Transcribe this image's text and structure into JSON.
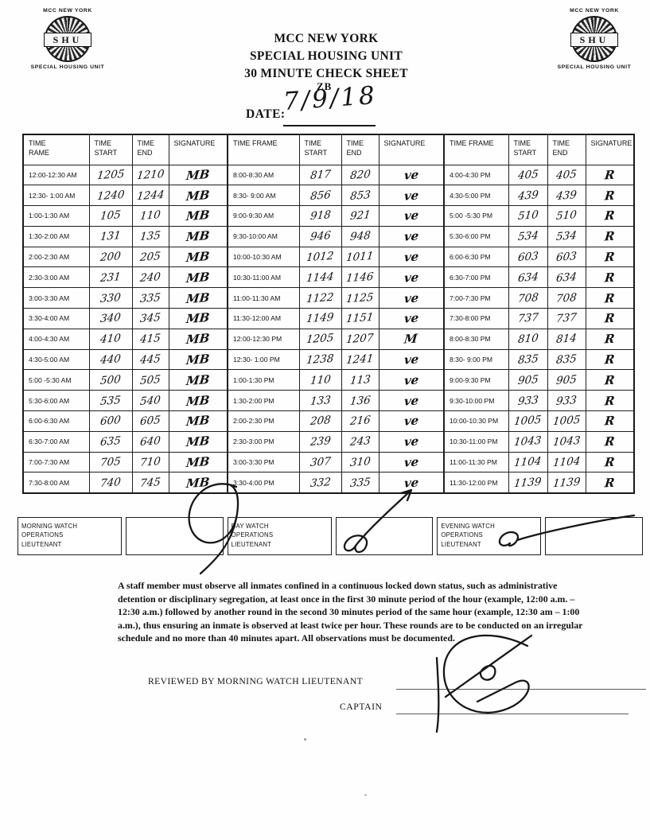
{
  "header": {
    "logo": {
      "top_line": "MCC NEW YORK",
      "seal_text": "SHU",
      "bottom_line": "SPECIAL HOUSING UNIT"
    },
    "title_line1": "MCC NEW YORK",
    "title_line2": "SPECIAL HOUSING UNIT",
    "title_line3": "30 MINUTE CHECK SHEET",
    "stamp": "ZB",
    "date_label": "DATE:",
    "date_value": "7/9/18"
  },
  "table": {
    "headers": [
      "TIME\nRAME",
      "TIME\nSTART",
      "TIME\nEND",
      "SIGNATURE",
      "TIME FRAME",
      "TIME\nSTART",
      "TIME\nEND",
      "SIGNATURE",
      "TIME FRAME",
      "TIME\nSTART",
      "TIME\nEND",
      "SIGNATURE"
    ],
    "rows": [
      [
        "12:00-12:30 AM",
        "1205",
        "1210",
        "MB",
        "8:00-8:30 AM",
        "817",
        "820",
        "ve",
        "4:00-4:30 PM",
        "405",
        "405",
        "R"
      ],
      [
        "12:30- 1:00 AM",
        "1240",
        "1244",
        "MB",
        "8:30- 9:00 AM",
        "856",
        "853",
        "ve",
        "4:30-5:00 PM",
        "439",
        "439",
        "R"
      ],
      [
        "1:00-1:30 AM",
        "105",
        "110",
        "MB",
        "9:00-9:30 AM",
        "918",
        "921",
        "ve",
        "5:00 -5:30 PM",
        "510",
        "510",
        "R"
      ],
      [
        "1:30-2:00 AM",
        "131",
        "135",
        "MB",
        "9:30-10:00 AM",
        "946",
        "948",
        "ve",
        "5:30-6:00 PM",
        "534",
        "534",
        "R"
      ],
      [
        "2:00-2:30 AM",
        "200",
        "205",
        "MB",
        "10:00-10:30 AM",
        "1012",
        "1011",
        "ve",
        "6:00-6:30 PM",
        "603",
        "603",
        "R"
      ],
      [
        "2:30-3:00 AM",
        "231",
        "240",
        "MB",
        "10:30-11:00 AM",
        "1144",
        "1146",
        "ve",
        "6:30-7:00 PM",
        "634",
        "634",
        "R"
      ],
      [
        "3:00-3:30 AM",
        "330",
        "335",
        "MB",
        "11:00-11:30 AM",
        "1122",
        "1125",
        "ve",
        "7:00-7:30 PM",
        "708",
        "708",
        "R"
      ],
      [
        "3:30-4:00 AM",
        "340",
        "345",
        "MB",
        "11:30-12:00 AM",
        "1149",
        "1151",
        "ve",
        "7:30-8:00 PM",
        "737",
        "737",
        "R"
      ],
      [
        "4:00-4:30 AM",
        "410",
        "415",
        "MB",
        "12:00-12:30 PM",
        "1205",
        "1207",
        "M",
        "8:00-8:30 PM",
        "810",
        "814",
        "R"
      ],
      [
        "4:30-5:00 AM",
        "440",
        "445",
        "MB",
        "12:30- 1:00 PM",
        "1238",
        "1241",
        "ve",
        "8:30- 9:00 PM",
        "835",
        "835",
        "R"
      ],
      [
        "5:00 -5:30 AM",
        "500",
        "505",
        "MB",
        "1:00-1:30 PM",
        "110",
        "113",
        "ve",
        "9:00-9:30 PM",
        "905",
        "905",
        "R"
      ],
      [
        "5:30-6:00 AM",
        "535",
        "540",
        "MB",
        "1:30-2:00 PM",
        "133",
        "136",
        "ve",
        "9:30-10:00 PM",
        "933",
        "933",
        "R"
      ],
      [
        "6:00-6:30 AM",
        "600",
        "605",
        "MB",
        "2:00-2:30 PM",
        "208",
        "216",
        "ve",
        "10:00-10:30 PM",
        "1005",
        "1005",
        "R"
      ],
      [
        "6:30-7:00 AM",
        "635",
        "640",
        "MB",
        "2:30-3:00 PM",
        "239",
        "243",
        "ve",
        "10:30-11:00 PM",
        "1043",
        "1043",
        "R"
      ],
      [
        "7:00-7:30 AM",
        "705",
        "710",
        "MB",
        "3:00-3:30 PM",
        "307",
        "310",
        "ve",
        "11:00-11:30 PM",
        "1104",
        "1104",
        "R"
      ],
      [
        "7:30-8:00 AM",
        "740",
        "745",
        "MB",
        "3:30-4:00 PM",
        "332",
        "335",
        "ve",
        "11:30-12:00 PM",
        "1139",
        "1139",
        "R"
      ]
    ]
  },
  "watch_row": {
    "morning_label": "MORNING WATCH\nOPERATIONS\nLIEUTENANT",
    "day_label": "DAY WATCH\nOPERATIONS\nLIEUTENANT",
    "evening_label": "EVENING WATCH\nOPERATIONS\nLIEUTENANT"
  },
  "notice": "A staff member must observe all inmates confined in a continuous locked down status, such as administrative detention or disciplinary segregation, at least once in the first 30 minute period of the hour (example, 12:00 a.m. – 12:30 a.m.) followed by another round in the second 30 minutes period of the same hour (example, 12:30 am – 1:00 a.m.), thus ensuring an inmate is observed at least twice per hour. These rounds are to be conducted on an irregular schedule and no more than 40 minutes apart. All observations must be documented.",
  "footer": {
    "reviewed_label": "REVIEWED BY MORNING WATCH LIEUTENANT",
    "captain_label": "CAPTAIN"
  },
  "colors": {
    "ink": "#1a1a1a",
    "paper": "#fefefe"
  }
}
